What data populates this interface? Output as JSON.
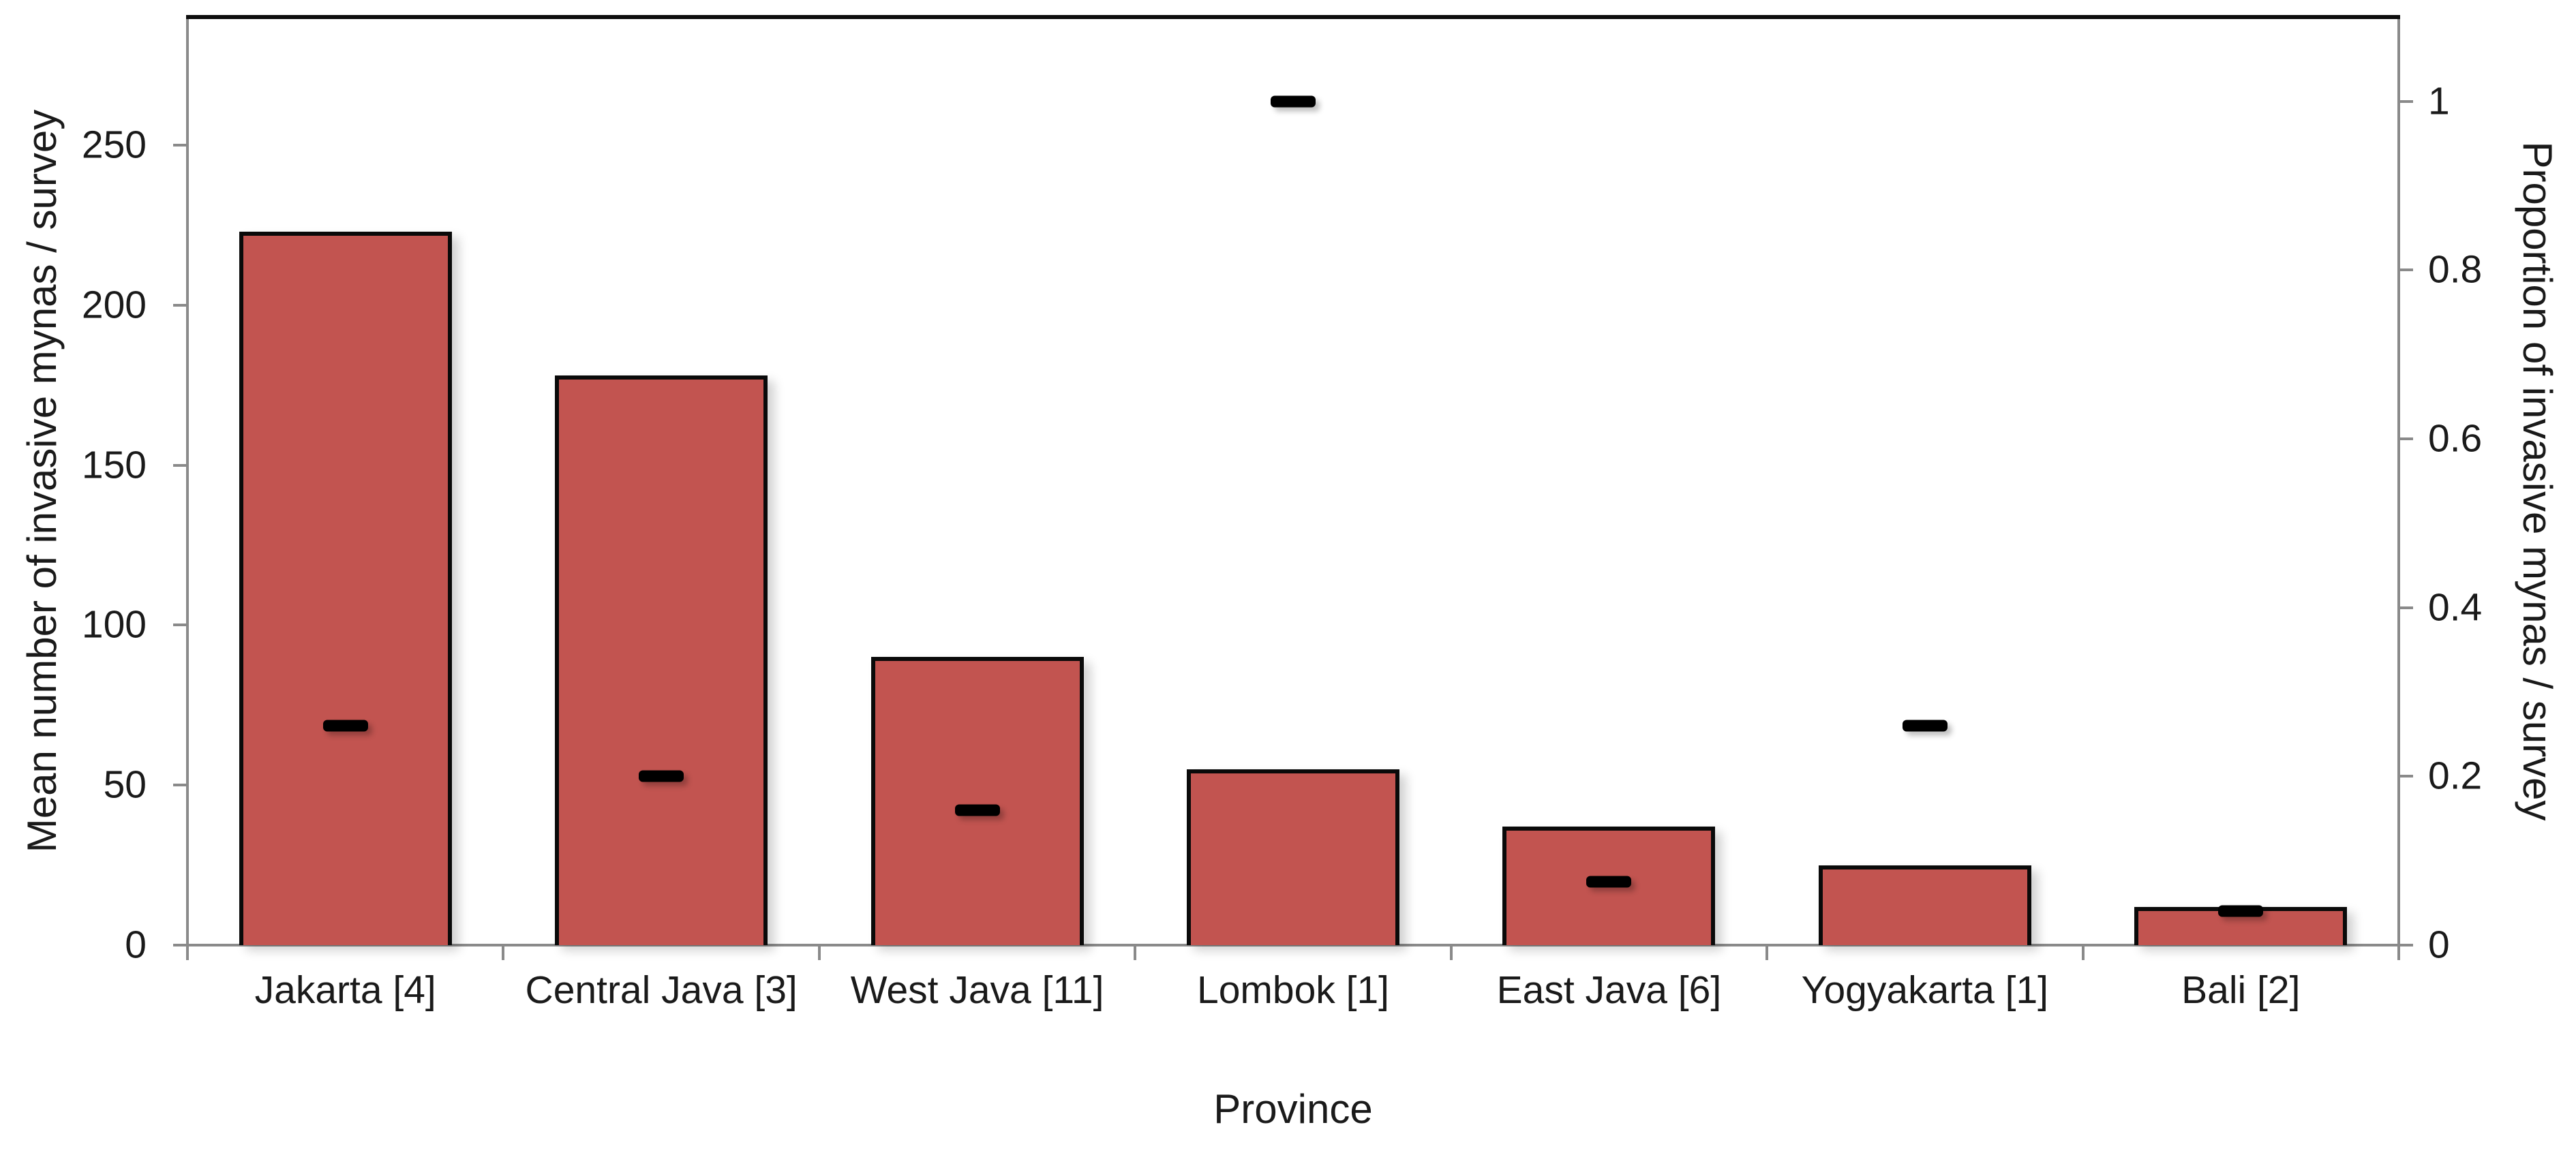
{
  "chart_data": {
    "type": "bar",
    "title": "",
    "categories": [
      "Jakarta [4]",
      "Central Java [3]",
      "West Java [11]",
      "Lombok [1]",
      "East Java [6]",
      "Yogyakarta [1]",
      "Bali [2]"
    ],
    "series": [
      {
        "name": "Mean number of invasive mynas / survey",
        "type": "bar",
        "axis": "left",
        "values": [
          223,
          178,
          90,
          55,
          37,
          25,
          12
        ]
      },
      {
        "name": "Proportion of invasive mynas / survey",
        "type": "dash-marker",
        "axis": "right",
        "values": [
          0.26,
          0.2,
          0.16,
          1,
          0.075,
          0.26,
          0.04
        ]
      }
    ],
    "xlabel": "Province",
    "left_axis": {
      "label": "Mean number of invasive mynas / survey",
      "ticks": [
        0,
        50,
        100,
        150,
        200,
        250
      ],
      "tick_labels": [
        "0",
        "50",
        "100",
        "150",
        "200",
        "250"
      ],
      "ylim": [
        0,
        290
      ]
    },
    "right_axis": {
      "label": "Proportion of invasive mynas / survey",
      "ticks": [
        0,
        0.2,
        0.4,
        0.6,
        0.8,
        1
      ],
      "tick_labels": [
        "0",
        "0.2",
        "0.4",
        "0.6",
        "0.8",
        "1"
      ],
      "ylim": [
        0,
        1.1
      ]
    },
    "legend": "none",
    "grid": "off",
    "colors": {
      "bar_fill": "#c25450",
      "bar_border": "#0a0a0a",
      "marker": "#000000",
      "axis_line": "#8a8a8a",
      "frame_top": "#0d0d0d",
      "text": "#1a1a1a"
    }
  }
}
